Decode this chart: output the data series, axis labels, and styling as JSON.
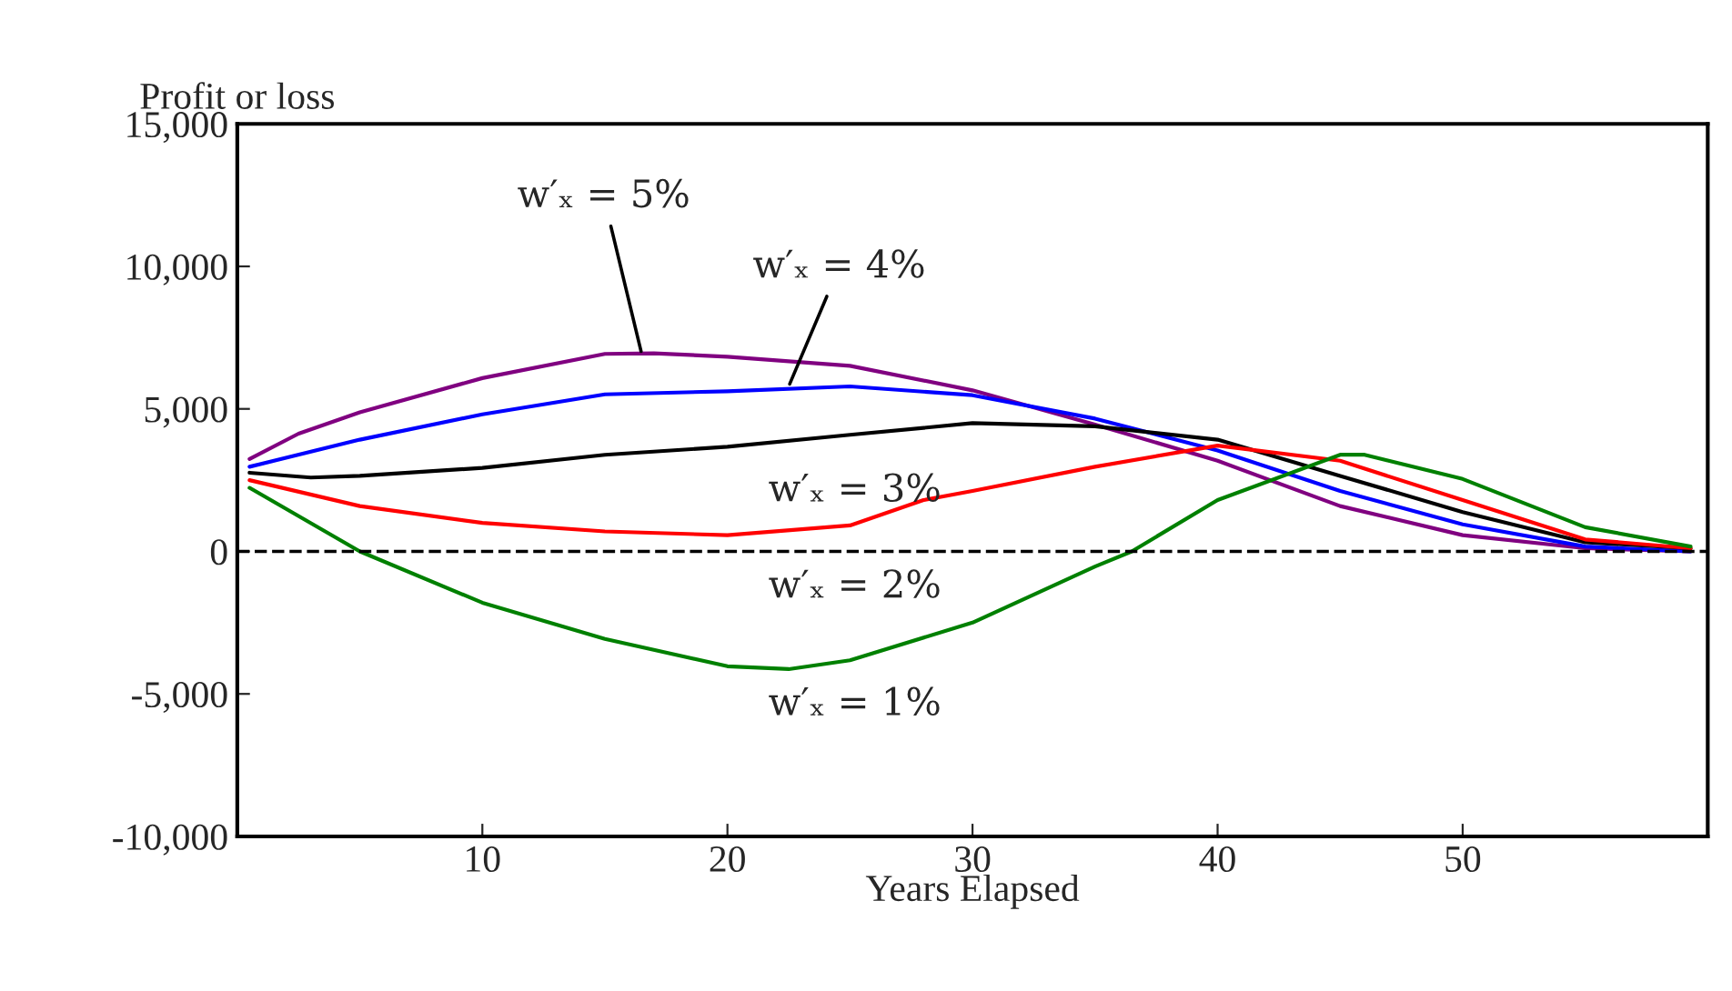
{
  "chart_data": {
    "type": "line",
    "xlabel": "Years Elapsed",
    "ylabel": "Profit or loss",
    "xlim": [
      0,
      60
    ],
    "ylim": [
      -10000,
      15000
    ],
    "xticks": [
      10,
      20,
      30,
      40,
      50
    ],
    "yticks": [
      {
        "value": -10000,
        "label": "-10,000"
      },
      {
        "value": -5000,
        "label": "-5,000"
      },
      {
        "value": 0,
        "label": "0"
      },
      {
        "value": 5000,
        "label": "5,000"
      },
      {
        "value": 10000,
        "label": "10,000"
      },
      {
        "value": 15000,
        "label": "15,000"
      }
    ],
    "grid": false,
    "marker": "none",
    "line_style": "solid",
    "series": [
      {
        "color": "#800080",
        "x": [
          0.5,
          2.5,
          5,
          10,
          15,
          17,
          20,
          25,
          30,
          35,
          40,
          45,
          50,
          55,
          59.3
        ],
        "values": [
          3240,
          4130,
          4880,
          6080,
          6930,
          6950,
          6830,
          6510,
          5650,
          4450,
          3180,
          1590,
          570,
          110,
          0
        ]
      },
      {
        "color": "#0000ff",
        "x": [
          0.5,
          5,
          10,
          15,
          20,
          25,
          30,
          35,
          40,
          45,
          50,
          55,
          59.3
        ],
        "values": [
          2970,
          3920,
          4810,
          5510,
          5620,
          5790,
          5480,
          4660,
          3540,
          2120,
          950,
          170,
          0
        ]
      },
      {
        "color": "#000000",
        "x": [
          0.5,
          3,
          5,
          10,
          15,
          20,
          25,
          30,
          35,
          40,
          45,
          50,
          55,
          59.3
        ],
        "values": [
          2760,
          2590,
          2650,
          2930,
          3390,
          3670,
          4090,
          4500,
          4390,
          3920,
          2650,
          1380,
          320,
          110
        ]
      },
      {
        "color": "#ff0000",
        "x": [
          0.5,
          5,
          10,
          15,
          20,
          25,
          28,
          30,
          35,
          40,
          45,
          50,
          55,
          59.3
        ],
        "values": [
          2500,
          1590,
          1000,
          700,
          570,
          910,
          1800,
          2120,
          2970,
          3710,
          3180,
          1800,
          420,
          110
        ]
      },
      {
        "color": "#008000",
        "x": [
          0.5,
          5,
          10,
          15,
          20,
          22.5,
          25,
          30,
          35,
          36.5,
          40,
          45,
          46,
          50,
          55,
          59.3
        ],
        "values": [
          2230,
          0,
          -1800,
          -3070,
          -4030,
          -4130,
          -3820,
          -2500,
          -530,
          0,
          1800,
          3390,
          3390,
          2540,
          850,
          170
        ]
      }
    ],
    "ref_lines": [
      {
        "axis": "y",
        "value": 0,
        "color": "#000000",
        "line_style": "dashed"
      }
    ],
    "annotations": [
      {
        "text": "w′ₓ = 5%",
        "x": 16.5,
        "y": 6930
      },
      {
        "text": "w′ₓ = 4%",
        "x": 22.5,
        "y": 5790
      },
      "w′ₓ = 3%",
      "w′ₓ = 2%",
      "w′ₓ = 1%"
    ]
  }
}
